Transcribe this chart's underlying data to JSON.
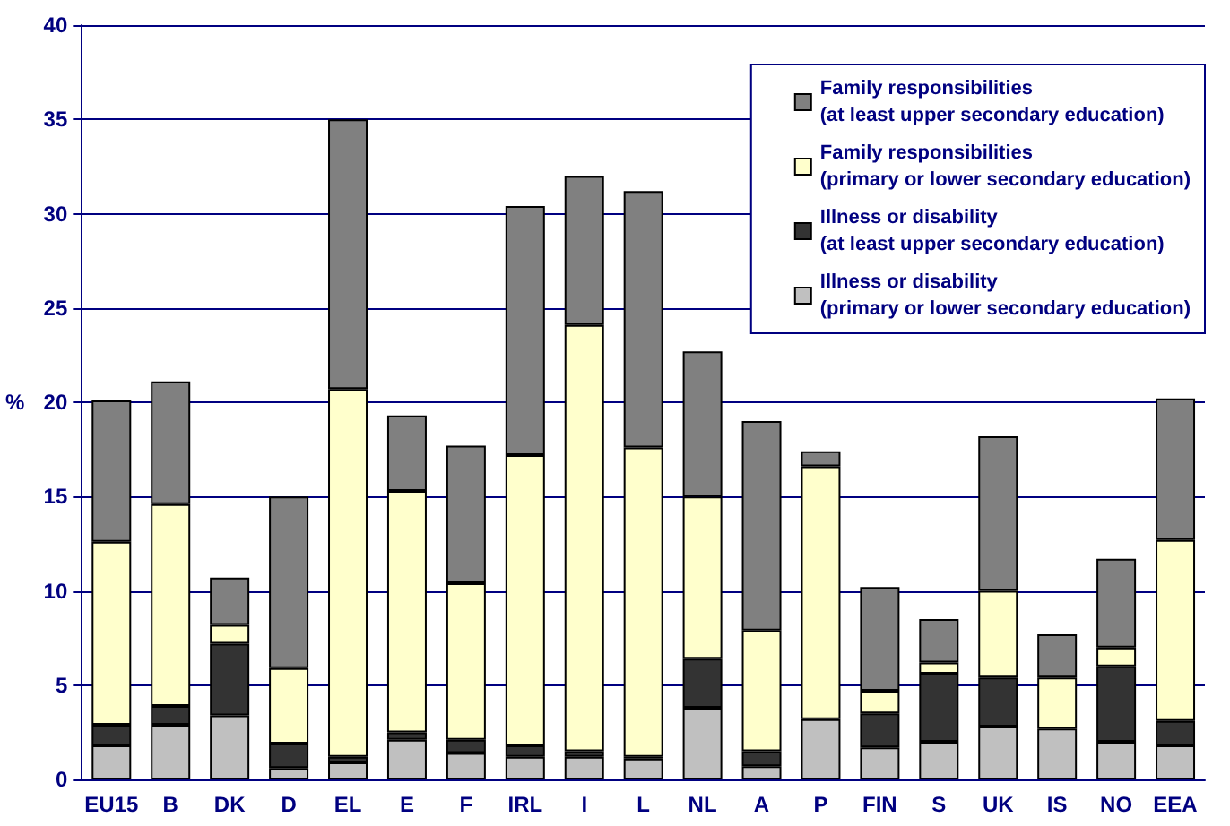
{
  "chart_data": {
    "type": "bar",
    "stacked": true,
    "ylabel": "%",
    "categories": [
      "EU15",
      "B",
      "DK",
      "D",
      "EL",
      "E",
      "F",
      "IRL",
      "I",
      "L",
      "NL",
      "A",
      "P",
      "FIN",
      "S",
      "UK",
      "IS",
      "NO",
      "EEA"
    ],
    "series": [
      {
        "name": "Illness or disability\n(primary or lower secondary education)",
        "color": "#c0c0c0",
        "values": [
          1.8,
          2.9,
          3.4,
          0.6,
          0.9,
          2.1,
          1.4,
          1.2,
          1.2,
          1.1,
          3.8,
          0.7,
          3.2,
          1.7,
          2.0,
          2.8,
          2.7,
          2.0,
          1.8
        ]
      },
      {
        "name": "Illness or disability\n(at least upper secondary education)",
        "color": "#333333",
        "values": [
          1.1,
          1.0,
          3.8,
          1.3,
          0.3,
          0.4,
          0.7,
          0.6,
          0.3,
          0.1,
          2.6,
          0.8,
          null,
          1.8,
          3.6,
          2.6,
          null,
          4.0,
          1.3
        ]
      },
      {
        "name": "Family responsibilities\n(primary or lower secondary education)",
        "color": "#ffffcc",
        "values": [
          9.7,
          10.7,
          1.0,
          4.0,
          19.5,
          12.8,
          8.3,
          15.4,
          22.6,
          16.4,
          8.6,
          6.4,
          13.4,
          1.2,
          0.6,
          4.6,
          2.7,
          1.0,
          9.6
        ]
      },
      {
        "name": "Family responsibilities\n(at least upper secondary education)",
        "color": "#808080",
        "values": [
          7.5,
          6.5,
          2.5,
          9.1,
          14.3,
          4.0,
          7.3,
          13.2,
          7.9,
          13.6,
          7.7,
          11.1,
          0.8,
          5.5,
          2.3,
          8.2,
          2.3,
          4.7,
          7.5
        ]
      }
    ],
    "ylim": [
      0,
      40
    ],
    "yticks": [
      0,
      5,
      10,
      15,
      20,
      25,
      30,
      35,
      40
    ],
    "grid": "y",
    "legend": "top right"
  }
}
